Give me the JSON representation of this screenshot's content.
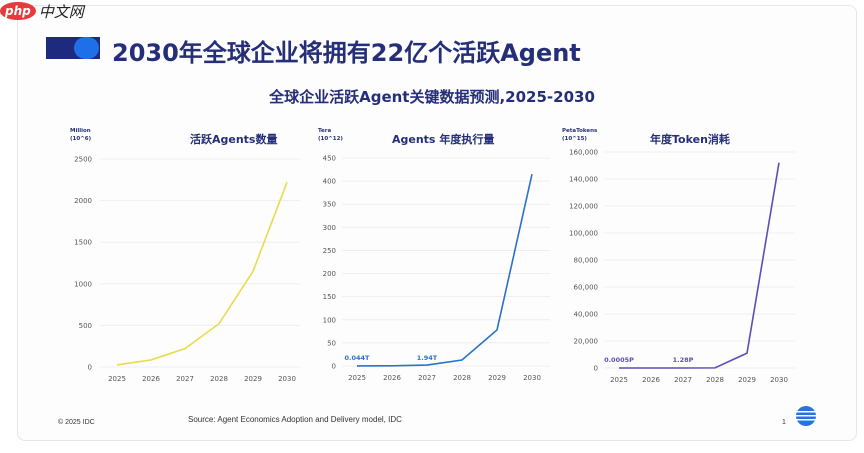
{
  "logo": {
    "text": "php中文网"
  },
  "page": {
    "title": "2030年全球企业将拥有22亿个活跃Agent",
    "subtitle": "全球企业活跃Agent关键数据预测,2025-2030"
  },
  "footer": {
    "copyright": "© 2025 IDC",
    "source": "Source: Agent Economics Adoption and Delivery model, IDC",
    "page_number": "1",
    "brand_icon": "idc-globe-icon"
  },
  "chart_data": [
    {
      "type": "line",
      "title": "活跃Agents数量",
      "unit_label": [
        "Million",
        "(10^6)"
      ],
      "categories": [
        "2025",
        "2026",
        "2027",
        "2028",
        "2029",
        "2030"
      ],
      "values": [
        25,
        85,
        220,
        520,
        1150,
        2220
      ],
      "ylim": [
        0,
        2500
      ],
      "yticks": [
        "0",
        "500",
        "1000",
        "1500",
        "2000",
        "2500"
      ],
      "color": "#e8dc4a",
      "annotations": [],
      "grid": true
    },
    {
      "type": "line",
      "title": "Agents 年度执行量",
      "unit_label": [
        "Tera",
        "(10^12)"
      ],
      "categories": [
        "2025",
        "2026",
        "2027",
        "2028",
        "2029",
        "2030"
      ],
      "values": [
        0.044,
        0.5,
        1.94,
        13,
        78,
        415
      ],
      "ylim": [
        0,
        450
      ],
      "yticks": [
        "0",
        "50",
        "100",
        "150",
        "200",
        "250",
        "300",
        "350",
        "400",
        "450"
      ],
      "color": "#2a72c8",
      "annotations": [
        {
          "index": 0,
          "text": "0.044T"
        },
        {
          "index": 2,
          "text": "1.94T"
        }
      ],
      "grid": true
    },
    {
      "type": "line",
      "title": "年度Token消耗",
      "unit_label": [
        "PetaTokens",
        "(10^15)"
      ],
      "categories": [
        "2025",
        "2026",
        "2027",
        "2028",
        "2029",
        "2030"
      ],
      "values": [
        0.0005,
        0.1,
        1.28,
        100,
        11000,
        152000
      ],
      "ylim": [
        0,
        160000
      ],
      "yticks": [
        "0",
        "20,000",
        "40,000",
        "60,000",
        "80,000",
        "100,000",
        "120,000",
        "140,000",
        "160,000"
      ],
      "color": "#5b4fb5",
      "annotations": [
        {
          "index": 0,
          "text": "0.0005P"
        },
        {
          "index": 2,
          "text": "1.28P"
        }
      ],
      "grid": true
    }
  ]
}
